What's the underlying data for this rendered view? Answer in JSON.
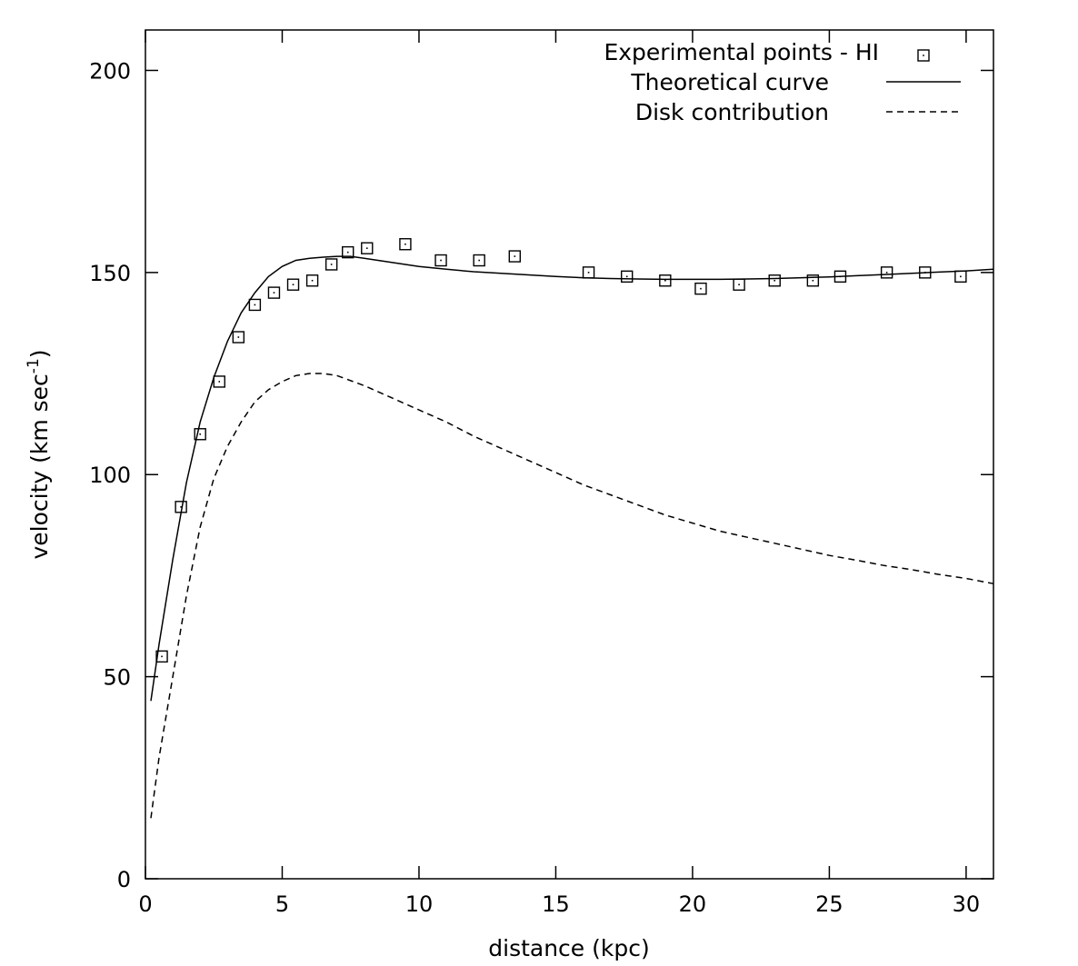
{
  "chart_data": {
    "type": "line",
    "title": "",
    "xlabel": "distance (kpc)",
    "ylabel": "velocity (km sec",
    "ylabel_superscript": "-1",
    "ylabel_close": ")",
    "xlim": [
      0,
      31
    ],
    "ylim": [
      0,
      210
    ],
    "xticks": [
      0,
      5,
      10,
      15,
      20,
      25,
      30
    ],
    "yticks": [
      0,
      50,
      100,
      150,
      200
    ],
    "grid": false,
    "legend_position": "top-right",
    "series": [
      {
        "name": "Experimental points - HI",
        "kind": "points",
        "marker": "square-dot",
        "x": [
          0.6,
          1.3,
          2.0,
          2.7,
          3.4,
          4.0,
          4.7,
          5.4,
          6.1,
          6.8,
          7.4,
          8.1,
          9.5,
          10.8,
          12.2,
          13.5,
          16.2,
          17.6,
          19.0,
          20.3,
          21.7,
          23.0,
          24.4,
          25.4,
          27.1,
          28.5,
          29.8
        ],
        "y": [
          55,
          92,
          110,
          123,
          134,
          142,
          145,
          147,
          148,
          152,
          155,
          156,
          157,
          153,
          153,
          154,
          150,
          149,
          148,
          146,
          147,
          148,
          148,
          149,
          150,
          150,
          149
        ]
      },
      {
        "name": "Theoretical curve",
        "kind": "line",
        "dash": "solid",
        "x": [
          0.2,
          0.5,
          1.0,
          1.5,
          2.0,
          2.5,
          3.0,
          3.5,
          4.0,
          4.5,
          5.0,
          5.5,
          6.0,
          6.5,
          7.0,
          7.5,
          8.0,
          9.0,
          10.0,
          11.0,
          12.0,
          13.0,
          14.0,
          15.0,
          16.0,
          17.0,
          18.0,
          19.0,
          20.0,
          21.0,
          22.0,
          23.0,
          24.0,
          25.0,
          26.0,
          27.0,
          28.0,
          29.0,
          30.0,
          31.0
        ],
        "y": [
          44,
          58,
          79,
          98,
          113,
          124,
          133,
          140,
          145,
          149,
          151.5,
          153,
          153.5,
          153.8,
          154,
          154,
          153.5,
          152.5,
          151.5,
          150.8,
          150.2,
          149.8,
          149.4,
          149,
          148.7,
          148.5,
          148.4,
          148.3,
          148.3,
          148.3,
          148.4,
          148.5,
          148.7,
          148.9,
          149.2,
          149.5,
          149.8,
          150.1,
          150.4,
          150.8
        ]
      },
      {
        "name": "Disk contribution",
        "kind": "line",
        "dash": "dashed",
        "x": [
          0.2,
          0.5,
          1.0,
          1.5,
          2.0,
          2.5,
          3.0,
          3.5,
          4.0,
          4.5,
          5.0,
          5.5,
          6.0,
          6.5,
          7.0,
          8.0,
          9.0,
          10.0,
          11.0,
          12.0,
          13.0,
          14.0,
          15.0,
          16.0,
          17.0,
          18.0,
          19.0,
          20.0,
          21.0,
          22.0,
          23.0,
          24.0,
          25.0,
          26.0,
          27.0,
          28.0,
          29.0,
          30.0,
          31.0
        ],
        "y": [
          15,
          30,
          50,
          70,
          87,
          99,
          107,
          113,
          118,
          121,
          123,
          124.5,
          125,
          125,
          124.5,
          122,
          119,
          116,
          113,
          109.5,
          106.5,
          103.5,
          100.5,
          97.5,
          95,
          92.5,
          90,
          88,
          86,
          84.5,
          83,
          81.5,
          80,
          78.8,
          77.5,
          76.5,
          75.3,
          74.3,
          73
        ]
      }
    ]
  }
}
